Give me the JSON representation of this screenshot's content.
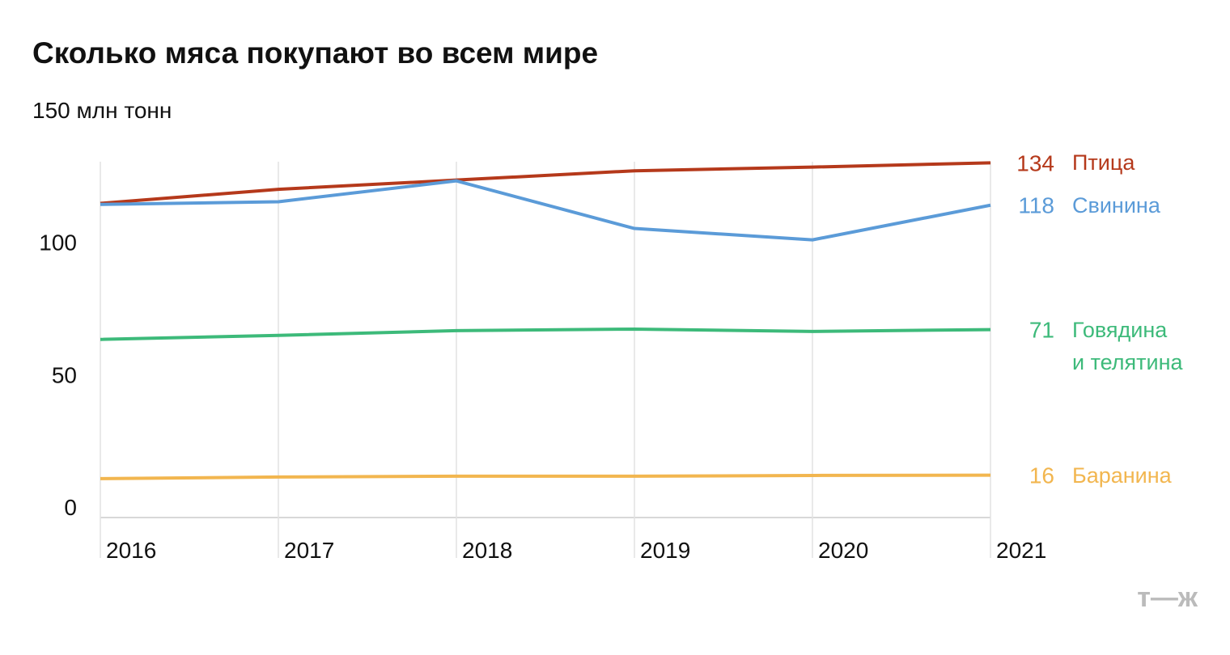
{
  "chart_data": {
    "type": "line",
    "title": "Сколько мяса покупают во всем мире",
    "x": [
      2016,
      2017,
      2018,
      2019,
      2020,
      2021
    ],
    "xlim": [
      2016,
      2021
    ],
    "xticks": [
      2016,
      2017,
      2018,
      2019,
      2020,
      2021
    ],
    "ylim": [
      0,
      150
    ],
    "yticks": [
      0,
      50,
      100,
      {
        "value": 150,
        "label": "150 млн тонн"
      }
    ],
    "grid": true,
    "series": [
      {
        "name": "Птица",
        "color": "#b5391b",
        "values": [
          118.7,
          124,
          127.5,
          131,
          132.4,
          134
        ],
        "value_labels": [
          null,
          null,
          null,
          null,
          null,
          "134"
        ]
      },
      {
        "name": "Свинина",
        "color": "#5b9bd8",
        "values": [
          118.3,
          119.3,
          127.2,
          109.2,
          104.9,
          118
        ],
        "value_labels": [
          null,
          null,
          null,
          null,
          null,
          "118"
        ]
      },
      {
        "name": "Говядина\nи телятина",
        "color": "#3dba7a",
        "values": [
          67.3,
          68.8,
          70.6,
          71.2,
          70.3,
          71
        ],
        "value_labels": [
          null,
          null,
          null,
          null,
          null,
          "71"
        ]
      },
      {
        "name": "Баранина",
        "color": "#f2b64f",
        "values": [
          14.7,
          15.3,
          15.6,
          15.6,
          15.9,
          16
        ],
        "value_labels": [
          null,
          null,
          null,
          null,
          null,
          "16"
        ]
      }
    ],
    "logo": "т—ж"
  }
}
